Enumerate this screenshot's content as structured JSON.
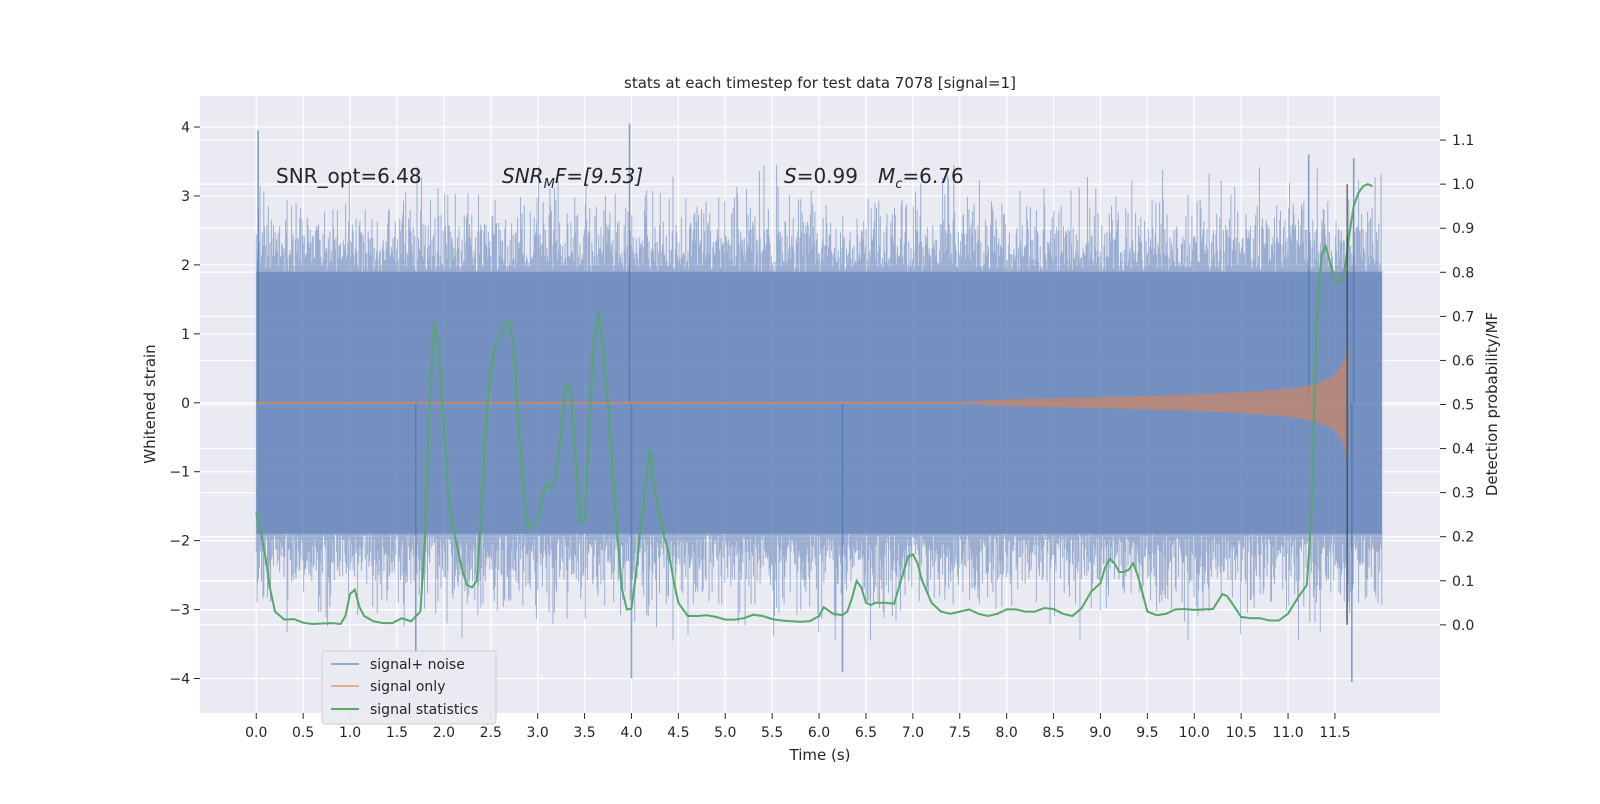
{
  "chart_data": {
    "type": "line",
    "title": "stats at each timestep for test data 7078 [signal=1]",
    "xlabel": "Time (s)",
    "ylabel_left": "Whitened strain",
    "ylabel_right": "Detection probability/MF",
    "xlim": [
      -0.6,
      12.62
    ],
    "ylim_left": [
      -4.5,
      4.45
    ],
    "ylim_right": [
      -0.2,
      1.2
    ],
    "x_ticks": [
      0.0,
      0.5,
      1.0,
      1.5,
      2.0,
      2.5,
      3.0,
      3.5,
      4.0,
      4.5,
      5.0,
      5.5,
      6.0,
      6.5,
      7.0,
      7.5,
      8.0,
      8.5,
      9.0,
      9.5,
      10.0,
      10.5,
      11.0,
      11.5
    ],
    "x_tick_labels": [
      "0.0",
      "0.5",
      "1.0",
      "1.5",
      "2.0",
      "2.5",
      "3.0",
      "3.5",
      "4.0",
      "4.5",
      "5.0",
      "5.5",
      "6.0",
      "6.5",
      "7.0",
      "7.5",
      "8.0",
      "8.5",
      "9.0",
      "9.5",
      "10.0",
      "10.5",
      "11.0",
      "11.5"
    ],
    "y_left_ticks": [
      -4,
      -3,
      -2,
      -1,
      0,
      1,
      2,
      3,
      4
    ],
    "y_left_tick_labels": [
      "−4",
      "−3",
      "−2",
      "−1",
      "0",
      "1",
      "2",
      "3",
      "4"
    ],
    "y_right_ticks": [
      0.0,
      0.1,
      0.2,
      0.3,
      0.4,
      0.5,
      0.6,
      0.7,
      0.8,
      0.9,
      1.0,
      1.1
    ],
    "y_right_tick_labels": [
      "0.0",
      "0.1",
      "0.2",
      "0.3",
      "0.4",
      "0.5",
      "0.6",
      "0.7",
      "0.8",
      "0.9",
      "1.0",
      "1.1"
    ],
    "grid": true,
    "legend_position": "lower-left",
    "annotations": {
      "snr_opt": "SNR_opt=6.48",
      "snr_mf_main": "SNR",
      "snr_mf_sub": "M",
      "snr_mf_rest": "F=[9.53]",
      "s_var": "S",
      "s_rest": "=0.99",
      "mc_var": "M",
      "mc_sub": "c",
      "mc_rest": "=6.76"
    },
    "merger_time": 11.63,
    "series": [
      {
        "name": "signal+ noise",
        "color": "#4c72b0",
        "opacity": 0.5,
        "t_range": [
          0.0,
          12.0
        ],
        "core_envelope": 1.9,
        "notable_extremes": [
          {
            "t": 0.02,
            "v": 3.95
          },
          {
            "t": 3.98,
            "v": 4.05
          },
          {
            "t": 11.22,
            "v": 3.6
          },
          {
            "t": 11.7,
            "v": 3.55
          },
          {
            "t": 4.0,
            "v": -4.0
          },
          {
            "t": 11.68,
            "v": -4.05
          },
          {
            "t": 6.25,
            "v": -3.9
          },
          {
            "t": 1.7,
            "v": -3.65
          }
        ]
      },
      {
        "name": "signal only",
        "color": "#dd8452",
        "opacity": 0.6,
        "envelope": [
          {
            "t": 7.5,
            "v": 0.01
          },
          {
            "t": 8.0,
            "v": 0.05
          },
          {
            "t": 9.0,
            "v": 0.08
          },
          {
            "t": 10.0,
            "v": 0.12
          },
          {
            "t": 10.5,
            "v": 0.15
          },
          {
            "t": 11.0,
            "v": 0.2
          },
          {
            "t": 11.3,
            "v": 0.27
          },
          {
            "t": 11.5,
            "v": 0.4
          },
          {
            "t": 11.6,
            "v": 0.62
          },
          {
            "t": 11.64,
            "v": 0.9
          }
        ]
      },
      {
        "name": "signal statistics",
        "color": "#55a868",
        "points": [
          [
            0.0,
            0.255
          ],
          [
            0.05,
            0.21
          ],
          [
            0.1,
            0.15
          ],
          [
            0.15,
            0.08
          ],
          [
            0.2,
            0.03
          ],
          [
            0.3,
            0.012
          ],
          [
            0.4,
            0.013
          ],
          [
            0.5,
            0.005
          ],
          [
            0.6,
            0.002
          ],
          [
            0.7,
            0.003
          ],
          [
            0.8,
            0.004
          ],
          [
            0.9,
            0.002
          ],
          [
            0.95,
            0.02
          ],
          [
            1.0,
            0.07
          ],
          [
            1.05,
            0.08
          ],
          [
            1.1,
            0.04
          ],
          [
            1.15,
            0.02
          ],
          [
            1.25,
            0.008
          ],
          [
            1.35,
            0.004
          ],
          [
            1.45,
            0.004
          ],
          [
            1.55,
            0.015
          ],
          [
            1.65,
            0.008
          ],
          [
            1.75,
            0.03
          ],
          [
            1.8,
            0.2
          ],
          [
            1.85,
            0.52
          ],
          [
            1.9,
            0.69
          ],
          [
            1.95,
            0.62
          ],
          [
            2.0,
            0.45
          ],
          [
            2.05,
            0.28
          ],
          [
            2.1,
            0.22
          ],
          [
            2.15,
            0.17
          ],
          [
            2.2,
            0.12
          ],
          [
            2.25,
            0.09
          ],
          [
            2.3,
            0.085
          ],
          [
            2.35,
            0.1
          ],
          [
            2.4,
            0.25
          ],
          [
            2.45,
            0.46
          ],
          [
            2.5,
            0.58
          ],
          [
            2.55,
            0.64
          ],
          [
            2.6,
            0.65
          ],
          [
            2.65,
            0.68
          ],
          [
            2.7,
            0.69
          ],
          [
            2.75,
            0.62
          ],
          [
            2.8,
            0.45
          ],
          [
            2.85,
            0.3
          ],
          [
            2.9,
            0.22
          ],
          [
            2.95,
            0.22
          ],
          [
            3.0,
            0.24
          ],
          [
            3.05,
            0.29
          ],
          [
            3.1,
            0.32
          ],
          [
            3.15,
            0.31
          ],
          [
            3.2,
            0.34
          ],
          [
            3.25,
            0.44
          ],
          [
            3.3,
            0.55
          ],
          [
            3.35,
            0.53
          ],
          [
            3.4,
            0.4
          ],
          [
            3.45,
            0.23
          ],
          [
            3.5,
            0.24
          ],
          [
            3.55,
            0.45
          ],
          [
            3.6,
            0.65
          ],
          [
            3.65,
            0.71
          ],
          [
            3.7,
            0.62
          ],
          [
            3.75,
            0.5
          ],
          [
            3.8,
            0.35
          ],
          [
            3.85,
            0.2
          ],
          [
            3.9,
            0.08
          ],
          [
            3.95,
            0.035
          ],
          [
            4.0,
            0.037
          ],
          [
            4.05,
            0.12
          ],
          [
            4.1,
            0.23
          ],
          [
            4.15,
            0.31
          ],
          [
            4.2,
            0.4
          ],
          [
            4.25,
            0.3
          ],
          [
            4.3,
            0.25
          ],
          [
            4.35,
            0.2
          ],
          [
            4.4,
            0.16
          ],
          [
            4.45,
            0.1
          ],
          [
            4.5,
            0.05
          ],
          [
            4.6,
            0.02
          ],
          [
            4.7,
            0.02
          ],
          [
            4.8,
            0.022
          ],
          [
            4.9,
            0.018
          ],
          [
            5.0,
            0.012
          ],
          [
            5.1,
            0.012
          ],
          [
            5.2,
            0.015
          ],
          [
            5.3,
            0.023
          ],
          [
            5.4,
            0.02
          ],
          [
            5.5,
            0.013
          ],
          [
            5.6,
            0.01
          ],
          [
            5.7,
            0.008
          ],
          [
            5.8,
            0.007
          ],
          [
            5.9,
            0.008
          ],
          [
            6.0,
            0.02
          ],
          [
            6.05,
            0.04
          ],
          [
            6.15,
            0.025
          ],
          [
            6.25,
            0.022
          ],
          [
            6.3,
            0.03
          ],
          [
            6.35,
            0.06
          ],
          [
            6.4,
            0.1
          ],
          [
            6.45,
            0.085
          ],
          [
            6.5,
            0.05
          ],
          [
            6.55,
            0.045
          ],
          [
            6.6,
            0.05
          ],
          [
            6.7,
            0.05
          ],
          [
            6.8,
            0.048
          ],
          [
            6.9,
            0.12
          ],
          [
            6.95,
            0.155
          ],
          [
            7.0,
            0.16
          ],
          [
            7.05,
            0.14
          ],
          [
            7.1,
            0.1
          ],
          [
            7.2,
            0.05
          ],
          [
            7.3,
            0.03
          ],
          [
            7.4,
            0.025
          ],
          [
            7.5,
            0.03
          ],
          [
            7.6,
            0.035
          ],
          [
            7.7,
            0.025
          ],
          [
            7.8,
            0.02
          ],
          [
            7.9,
            0.025
          ],
          [
            8.0,
            0.035
          ],
          [
            8.1,
            0.035
          ],
          [
            8.2,
            0.03
          ],
          [
            8.3,
            0.03
          ],
          [
            8.4,
            0.038
          ],
          [
            8.5,
            0.036
          ],
          [
            8.6,
            0.025
          ],
          [
            8.7,
            0.02
          ],
          [
            8.8,
            0.038
          ],
          [
            8.9,
            0.075
          ],
          [
            9.0,
            0.095
          ],
          [
            9.05,
            0.13
          ],
          [
            9.1,
            0.15
          ],
          [
            9.15,
            0.14
          ],
          [
            9.2,
            0.12
          ],
          [
            9.25,
            0.12
          ],
          [
            9.3,
            0.125
          ],
          [
            9.35,
            0.14
          ],
          [
            9.4,
            0.11
          ],
          [
            9.5,
            0.03
          ],
          [
            9.6,
            0.022
          ],
          [
            9.7,
            0.025
          ],
          [
            9.8,
            0.035
          ],
          [
            9.9,
            0.036
          ],
          [
            10.0,
            0.034
          ],
          [
            10.1,
            0.035
          ],
          [
            10.2,
            0.036
          ],
          [
            10.3,
            0.07
          ],
          [
            10.35,
            0.065
          ],
          [
            10.4,
            0.05
          ],
          [
            10.5,
            0.018
          ],
          [
            10.6,
            0.015
          ],
          [
            10.7,
            0.015
          ],
          [
            10.8,
            0.01
          ],
          [
            10.9,
            0.01
          ],
          [
            11.0,
            0.025
          ],
          [
            11.1,
            0.06
          ],
          [
            11.2,
            0.09
          ],
          [
            11.25,
            0.25
          ],
          [
            11.3,
            0.66
          ],
          [
            11.33,
            0.77
          ],
          [
            11.36,
            0.84
          ],
          [
            11.4,
            0.86
          ],
          [
            11.45,
            0.82
          ],
          [
            11.5,
            0.78
          ],
          [
            11.55,
            0.78
          ],
          [
            11.6,
            0.8
          ],
          [
            11.65,
            0.88
          ],
          [
            11.7,
            0.95
          ],
          [
            11.75,
            0.98
          ],
          [
            11.8,
            0.995
          ],
          [
            11.85,
            1.0
          ],
          [
            11.9,
            0.995
          ]
        ]
      }
    ]
  }
}
